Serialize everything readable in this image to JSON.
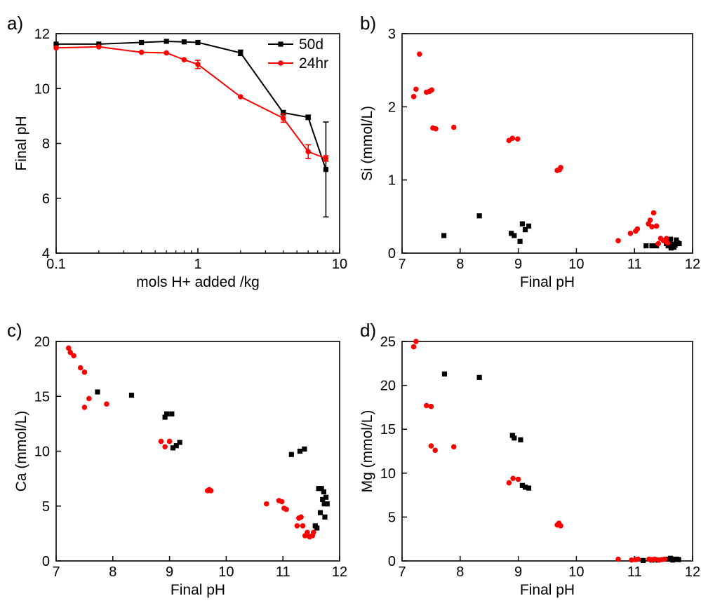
{
  "figure": {
    "colors": {
      "series_50d": "#000000",
      "series_24hr": "#ff0000",
      "axes": "#000000"
    }
  },
  "chart_data": [
    {
      "panel": "a)",
      "type": "line",
      "xlabel": "mols H+ added /kg",
      "ylabel": "Final pH",
      "xscale": "log",
      "xlim": [
        0.1,
        10
      ],
      "ylim": [
        4,
        12
      ],
      "xticks": [
        0.1,
        1,
        10
      ],
      "xtick_labels": [
        "0.1",
        "1",
        "10"
      ],
      "yticks": [
        4,
        6,
        8,
        10,
        12
      ],
      "ytick_labels": [
        "4",
        "6",
        "8",
        "10",
        "12"
      ],
      "legend_position": "top-right",
      "series": [
        {
          "name": "50d",
          "color": "#000000",
          "marker": "square",
          "x": [
            0.1,
            0.2,
            0.4,
            0.6,
            0.8,
            1,
            2,
            4,
            6,
            8
          ],
          "y": [
            11.62,
            11.62,
            11.68,
            11.72,
            11.7,
            11.68,
            11.3,
            9.12,
            8.95,
            7.05
          ],
          "err": [
            0.05,
            0.05,
            0.05,
            0.05,
            0.05,
            0.05,
            0.1,
            0.08,
            0.08,
            1.73
          ]
        },
        {
          "name": "24hr",
          "color": "#ff0000",
          "marker": "circle",
          "x": [
            0.1,
            0.2,
            0.4,
            0.6,
            0.8,
            1,
            2,
            4,
            6,
            8
          ],
          "y": [
            11.48,
            11.52,
            11.32,
            11.3,
            11.05,
            10.88,
            9.7,
            8.92,
            7.7,
            7.45
          ],
          "err": [
            0.05,
            0.05,
            0.05,
            0.05,
            0.05,
            0.15,
            0.05,
            0.15,
            0.25,
            0.1
          ]
        }
      ]
    },
    {
      "panel": "b)",
      "type": "scatter",
      "xlabel": "Final pH",
      "ylabel": "Si (mmol/L)",
      "xlim": [
        7,
        12
      ],
      "ylim": [
        0,
        3
      ],
      "xticks": [
        7,
        8,
        9,
        10,
        11,
        12
      ],
      "xtick_labels": [
        "7",
        "8",
        "9",
        "10",
        "11",
        "12"
      ],
      "yticks": [
        0,
        1,
        2,
        3
      ],
      "ytick_labels": [
        "0",
        "1",
        "2",
        "3"
      ],
      "series": [
        {
          "name": "50d",
          "color": "#000000",
          "marker": "square",
          "points": [
            [
              7.72,
              0.24
            ],
            [
              8.33,
              0.51
            ],
            [
              8.88,
              0.27
            ],
            [
              8.93,
              0.24
            ],
            [
              9.03,
              0.16
            ],
            [
              9.07,
              0.4
            ],
            [
              9.12,
              0.32
            ],
            [
              9.18,
              0.37
            ],
            [
              11.2,
              0.1
            ],
            [
              11.3,
              0.1
            ],
            [
              11.38,
              0.1
            ],
            [
              11.55,
              0.13
            ],
            [
              11.58,
              0.1
            ],
            [
              11.6,
              0.15
            ],
            [
              11.62,
              0.19
            ],
            [
              11.63,
              0.07
            ],
            [
              11.66,
              0.12
            ],
            [
              11.68,
              0.08
            ],
            [
              11.7,
              0.11
            ],
            [
              11.72,
              0.18
            ],
            [
              11.74,
              0.14
            ],
            [
              11.77,
              0.13
            ]
          ]
        },
        {
          "name": "24hr",
          "color": "#ff0000",
          "marker": "circle",
          "points": [
            [
              7.2,
              2.14
            ],
            [
              7.24,
              2.24
            ],
            [
              7.3,
              2.72
            ],
            [
              7.42,
              2.2
            ],
            [
              7.47,
              2.21
            ],
            [
              7.51,
              2.23
            ],
            [
              7.53,
              1.71
            ],
            [
              7.58,
              1.7
            ],
            [
              7.89,
              1.72
            ],
            [
              8.84,
              1.54
            ],
            [
              8.9,
              1.57
            ],
            [
              8.99,
              1.56
            ],
            [
              9.67,
              1.13
            ],
            [
              9.71,
              1.14
            ],
            [
              9.73,
              1.17
            ],
            [
              10.72,
              0.17
            ],
            [
              10.93,
              0.27
            ],
            [
              11.02,
              0.3
            ],
            [
              11.05,
              0.33
            ],
            [
              11.24,
              0.4
            ],
            [
              11.27,
              0.45
            ],
            [
              11.3,
              0.36
            ],
            [
              11.33,
              0.55
            ],
            [
              11.38,
              0.37
            ],
            [
              11.41,
              0.13
            ],
            [
              11.45,
              0.2
            ],
            [
              11.5,
              0.17
            ],
            [
              11.55,
              0.2
            ],
            [
              11.57,
              0.14
            ]
          ]
        }
      ]
    },
    {
      "panel": "c)",
      "type": "scatter",
      "xlabel": "Final pH",
      "ylabel": "Ca (mmol/L)",
      "xlim": [
        7,
        12
      ],
      "ylim": [
        0,
        20
      ],
      "xticks": [
        7,
        8,
        9,
        10,
        11,
        12
      ],
      "xtick_labels": [
        "7",
        "8",
        "9",
        "10",
        "11",
        "12"
      ],
      "yticks": [
        0,
        5,
        10,
        15,
        20
      ],
      "ytick_labels": [
        "0",
        "5",
        "10",
        "15",
        "20"
      ],
      "series": [
        {
          "name": "50d",
          "color": "#000000",
          "marker": "square",
          "points": [
            [
              7.73,
              15.4
            ],
            [
              8.33,
              15.1
            ],
            [
              8.92,
              13.1
            ],
            [
              8.95,
              13.4
            ],
            [
              9.04,
              13.4
            ],
            [
              9.06,
              10.3
            ],
            [
              9.12,
              10.5
            ],
            [
              9.18,
              10.8
            ],
            [
              11.15,
              9.7
            ],
            [
              11.3,
              10.0
            ],
            [
              11.38,
              10.2
            ],
            [
              11.57,
              3.2
            ],
            [
              11.6,
              3.0
            ],
            [
              11.63,
              6.6
            ],
            [
              11.66,
              4.4
            ],
            [
              11.68,
              6.6
            ],
            [
              11.7,
              5.6
            ],
            [
              11.72,
              6.3
            ],
            [
              11.73,
              5.2
            ],
            [
              11.74,
              4.0
            ],
            [
              11.76,
              5.8
            ],
            [
              11.78,
              5.2
            ]
          ]
        },
        {
          "name": "24hr",
          "color": "#ff0000",
          "marker": "circle",
          "points": [
            [
              7.22,
              19.4
            ],
            [
              7.25,
              19.0
            ],
            [
              7.31,
              18.7
            ],
            [
              7.43,
              17.6
            ],
            [
              7.5,
              17.2
            ],
            [
              7.5,
              14.0
            ],
            [
              7.58,
              14.8
            ],
            [
              7.89,
              14.3
            ],
            [
              8.85,
              10.9
            ],
            [
              8.92,
              10.4
            ],
            [
              9.0,
              10.9
            ],
            [
              9.67,
              6.4
            ],
            [
              9.7,
              6.5
            ],
            [
              9.73,
              6.4
            ],
            [
              10.71,
              5.2
            ],
            [
              10.93,
              5.5
            ],
            [
              10.98,
              5.4
            ],
            [
              11.02,
              4.8
            ],
            [
              11.06,
              4.7
            ],
            [
              11.25,
              3.2
            ],
            [
              11.28,
              3.9
            ],
            [
              11.32,
              4.0
            ],
            [
              11.35,
              3.2
            ],
            [
              11.39,
              2.3
            ],
            [
              11.43,
              2.6
            ],
            [
              11.47,
              2.2
            ],
            [
              11.52,
              2.3
            ],
            [
              11.54,
              2.6
            ]
          ]
        }
      ]
    },
    {
      "panel": "d)",
      "type": "scatter",
      "xlabel": "Final pH",
      "ylabel": "Mg (mmol/L)",
      "xlim": [
        7,
        12
      ],
      "ylim": [
        0,
        25
      ],
      "xticks": [
        7,
        8,
        9,
        10,
        11,
        12
      ],
      "xtick_labels": [
        "7",
        "8",
        "9",
        "10",
        "11",
        "12"
      ],
      "yticks": [
        0,
        5,
        10,
        15,
        20,
        25
      ],
      "ytick_labels": [
        "0",
        "5",
        "10",
        "15",
        "20",
        "25"
      ],
      "series": [
        {
          "name": "50d",
          "color": "#000000",
          "marker": "square",
          "points": [
            [
              7.73,
              21.3
            ],
            [
              8.33,
              20.9
            ],
            [
              8.9,
              14.3
            ],
            [
              8.93,
              14.0
            ],
            [
              9.04,
              13.8
            ],
            [
              9.07,
              8.6
            ],
            [
              9.12,
              8.4
            ],
            [
              9.18,
              8.3
            ],
            [
              11.15,
              0.05
            ],
            [
              11.3,
              0.1
            ],
            [
              11.4,
              0.1
            ],
            [
              11.58,
              0.2
            ],
            [
              11.62,
              0.3
            ],
            [
              11.66,
              0.1
            ],
            [
              11.7,
              0.2
            ],
            [
              11.73,
              0.2
            ],
            [
              11.76,
              0.15
            ]
          ]
        },
        {
          "name": "24hr",
          "color": "#ff0000",
          "marker": "circle",
          "points": [
            [
              7.2,
              24.4
            ],
            [
              7.24,
              25.0
            ],
            [
              7.42,
              17.7
            ],
            [
              7.5,
              17.6
            ],
            [
              7.5,
              13.1
            ],
            [
              7.57,
              12.6
            ],
            [
              7.89,
              13.0
            ],
            [
              8.84,
              8.9
            ],
            [
              8.91,
              9.4
            ],
            [
              9.0,
              9.3
            ],
            [
              9.67,
              4.1
            ],
            [
              9.7,
              4.3
            ],
            [
              9.73,
              4.0
            ],
            [
              10.72,
              0.2
            ],
            [
              10.95,
              0.1
            ],
            [
              11.02,
              0.15
            ],
            [
              11.06,
              0.2
            ],
            [
              11.25,
              0.2
            ],
            [
              11.3,
              0.15
            ],
            [
              11.35,
              0.2
            ],
            [
              11.42,
              0.1
            ],
            [
              11.47,
              0.15
            ],
            [
              11.52,
              0.2
            ]
          ]
        }
      ]
    }
  ]
}
